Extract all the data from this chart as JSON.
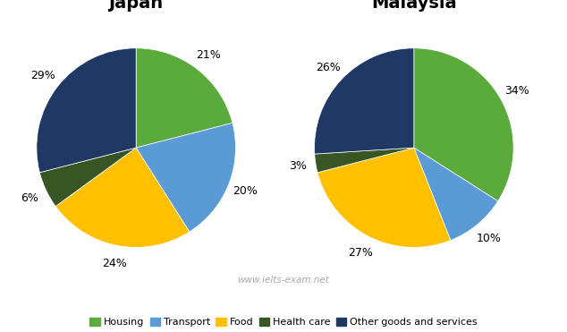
{
  "japan": {
    "title": "Japan",
    "values": [
      21,
      20,
      24,
      6,
      29
    ],
    "colors": [
      "#5aaa3c",
      "#5b9bd5",
      "#ffc000",
      "#375623",
      "#1f3864"
    ],
    "pct_labels": [
      "21%",
      "20%",
      "24%",
      "6%",
      "29%"
    ]
  },
  "malaysia": {
    "title": "Malaysia",
    "values": [
      34,
      10,
      27,
      3,
      26
    ],
    "colors": [
      "#5aaa3c",
      "#5b9bd5",
      "#ffc000",
      "#375623",
      "#1f3864"
    ],
    "pct_labels": [
      "34%",
      "10%",
      "27%",
      "3%",
      "26%"
    ]
  },
  "legend_labels": [
    "Housing",
    "Transport",
    "Food",
    "Health care",
    "Other goods and services"
  ],
  "legend_colors": [
    "#5aaa3c",
    "#5b9bd5",
    "#ffc000",
    "#375623",
    "#1f3864"
  ],
  "watermark": "www.ielts-exam.net",
  "background_color": "#ffffff",
  "title_fontsize": 14,
  "label_fontsize": 9,
  "legend_fontsize": 8
}
